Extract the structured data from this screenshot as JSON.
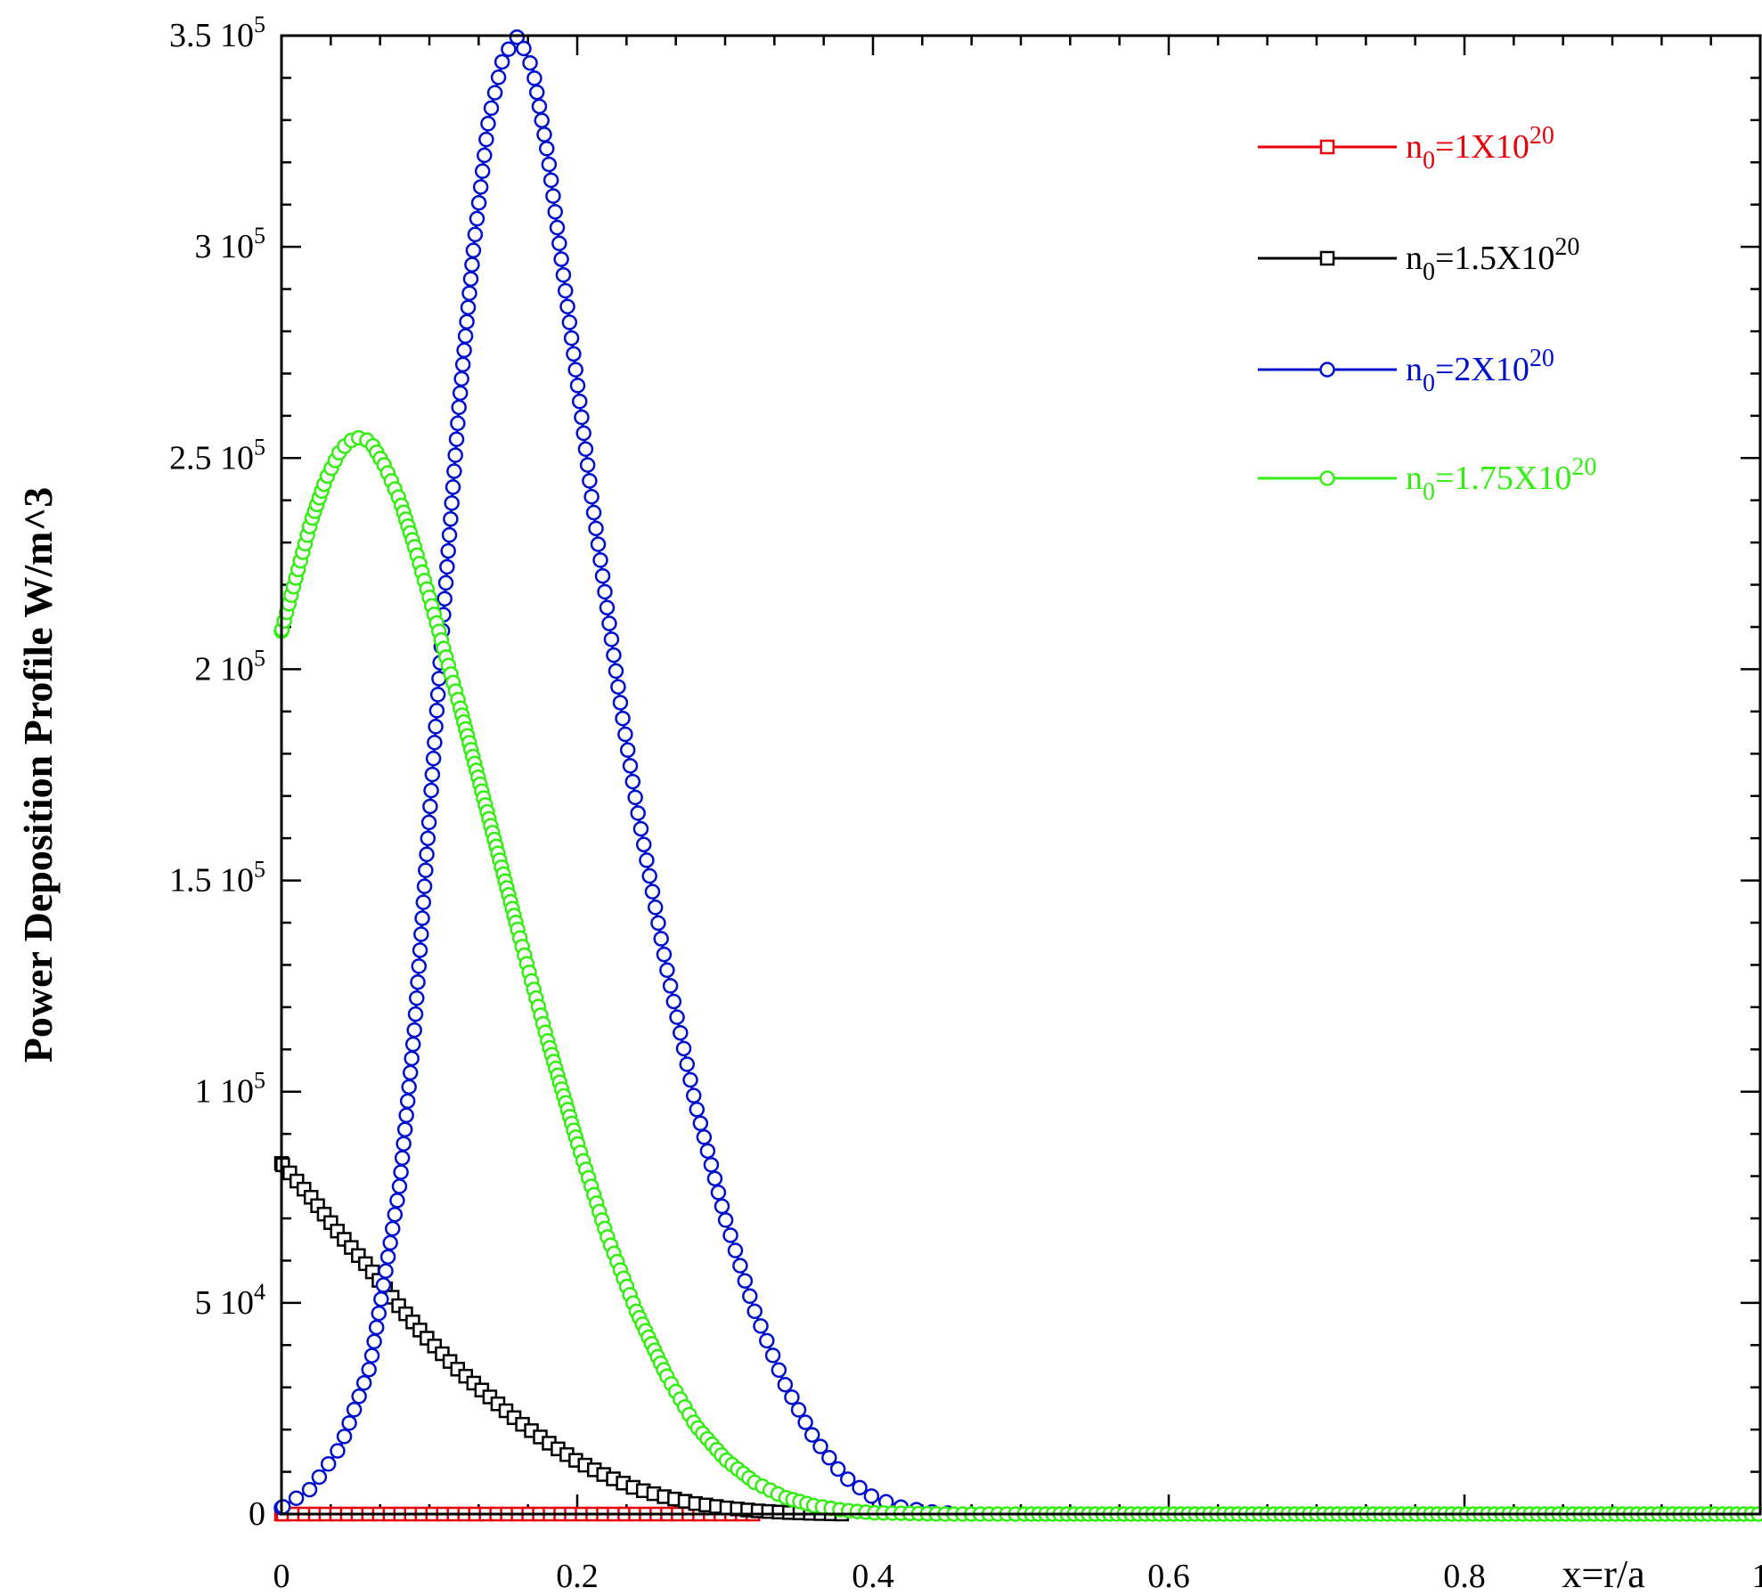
{
  "chart_data": {
    "type": "line",
    "xlabel": "x=r/a",
    "ylabel": "Power Deposition Profile W/m^3",
    "xlim": [
      0,
      1
    ],
    "ylim": [
      0,
      350000
    ],
    "x_ticks": [
      {
        "value": 0,
        "label": "0"
      },
      {
        "value": 0.2,
        "label": "0.2"
      },
      {
        "value": 0.4,
        "label": "0.4"
      },
      {
        "value": 0.6,
        "label": "0.6"
      },
      {
        "value": 0.8,
        "label": "0.8"
      },
      {
        "value": 1,
        "label": "1"
      }
    ],
    "y_ticks": [
      {
        "value": 0,
        "mant": "0",
        "exp": ""
      },
      {
        "value": 50000,
        "mant": "5 10",
        "exp": "4"
      },
      {
        "value": 100000,
        "mant": "1 10",
        "exp": "5"
      },
      {
        "value": 150000,
        "mant": "1.5 10",
        "exp": "5"
      },
      {
        "value": 200000,
        "mant": "2 10",
        "exp": "5"
      },
      {
        "value": 250000,
        "mant": "2.5 10",
        "exp": "5"
      },
      {
        "value": 300000,
        "mant": "3 10",
        "exp": "5"
      },
      {
        "value": 350000,
        "mant": "3.5 10",
        "exp": "5"
      }
    ],
    "grid": false,
    "legend_position": "top-right",
    "series": [
      {
        "name": "n0=1X10^20",
        "legend_main": "n",
        "legend_sub": "0",
        "legend_rest": "=1X10",
        "legend_sup": "20",
        "color": "#e8000b",
        "marker": "square",
        "x": [
          0,
          0.32
        ],
        "y": [
          0,
          0
        ]
      },
      {
        "name": "n0=1.5X10^20",
        "legend_main": "n",
        "legend_sub": "0",
        "legend_rest": "=1.5X10",
        "legend_sup": "20",
        "color": "#000000",
        "marker": "square",
        "x": [
          0,
          0.02,
          0.04,
          0.06,
          0.08,
          0.1,
          0.12,
          0.14,
          0.16,
          0.18,
          0.2,
          0.22,
          0.24,
          0.26,
          0.28,
          0.3,
          0.32,
          0.34,
          0.36,
          0.38
        ],
        "y": [
          83000,
          75000,
          66000,
          58000,
          49000,
          41000,
          34000,
          28000,
          22000,
          17000,
          12500,
          9000,
          6000,
          4000,
          2500,
          1500,
          800,
          400,
          150,
          0
        ]
      },
      {
        "name": "n0=2X10^20",
        "legend_main": "n",
        "legend_sub": "0",
        "legend_rest": "=2X10",
        "legend_sup": "20",
        "color": "#0010cc",
        "marker": "circle",
        "x": [
          0,
          0.02,
          0.04,
          0.06,
          0.08,
          0.09,
          0.1,
          0.11,
          0.12,
          0.13,
          0.14,
          0.15,
          0.16,
          0.17,
          0.18,
          0.19,
          0.2,
          0.21,
          0.22,
          0.23,
          0.24,
          0.26,
          0.28,
          0.3,
          0.32,
          0.34,
          0.36,
          0.38,
          0.4,
          0.42,
          0.44,
          0.46
        ],
        "y": [
          1500,
          6000,
          16000,
          35000,
          78000,
          115000,
          165000,
          215000,
          262000,
          300000,
          330000,
          345000,
          350000,
          342000,
          322000,
          295000,
          268000,
          240000,
          215000,
          190000,
          168000,
          130000,
          97000,
          70000,
          48000,
          31000,
          18000,
          9000,
          4000,
          1500,
          500,
          0
        ]
      },
      {
        "name": "n0=1.75X10^20",
        "legend_main": "n",
        "legend_sub": "0",
        "legend_rest": "=1.75X10",
        "legend_sup": "20",
        "color": "#33ee11",
        "marker": "circle",
        "x": [
          0,
          0.01,
          0.02,
          0.03,
          0.04,
          0.05,
          0.06,
          0.07,
          0.08,
          0.09,
          0.1,
          0.12,
          0.14,
          0.16,
          0.18,
          0.2,
          0.22,
          0.24,
          0.26,
          0.28,
          0.3,
          0.32,
          0.34,
          0.36,
          0.38,
          0.4,
          0.45,
          0.5,
          0.6,
          0.7,
          0.8,
          0.9,
          1.0
        ],
        "y": [
          209000,
          222000,
          235000,
          245000,
          252000,
          255000,
          254000,
          248000,
          240000,
          229000,
          217000,
          192000,
          165000,
          138000,
          112000,
          88000,
          66000,
          48000,
          33000,
          21000,
          13000,
          7500,
          4000,
          2000,
          900,
          300,
          0,
          0,
          0,
          0,
          0,
          0,
          0
        ]
      }
    ]
  }
}
